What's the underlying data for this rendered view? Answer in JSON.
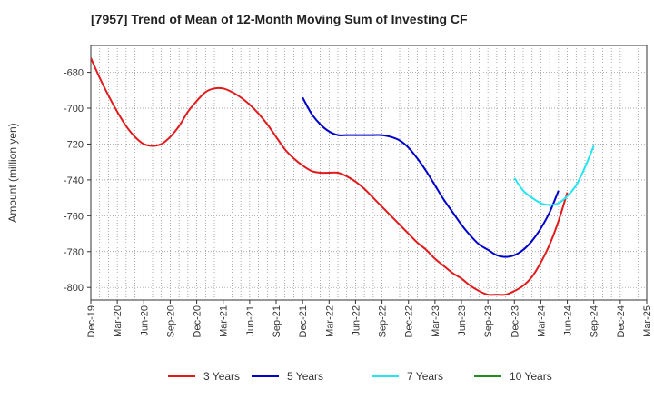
{
  "chart_data": {
    "type": "line",
    "title": "[7957]  Trend of Mean of 12-Month Moving Sum of Investing CF",
    "xlabel": "",
    "ylabel": "Amount (million yen)",
    "ylim": [
      -807,
      -665
    ],
    "yticks": [
      -680,
      -700,
      -720,
      -740,
      -760,
      -780,
      -800
    ],
    "xticks": [
      "Dec-19",
      "Mar-20",
      "Jun-20",
      "Sep-20",
      "Dec-20",
      "Mar-21",
      "Jun-21",
      "Sep-21",
      "Dec-21",
      "Mar-22",
      "Jun-22",
      "Sep-22",
      "Dec-22",
      "Mar-23",
      "Jun-23",
      "Sep-23",
      "Dec-23",
      "Mar-24",
      "Jun-24",
      "Sep-24",
      "Dec-24",
      "Mar-25"
    ],
    "grid": true,
    "legend_position": "bottom",
    "series": [
      {
        "name": "3 Years",
        "color": "#e31a1c",
        "start_index": 0,
        "values": [
          -672,
          -683,
          -693,
          -702,
          -710,
          -716,
          -720,
          -721,
          -720,
          -716,
          -710,
          -702,
          -696,
          -691,
          -689,
          -689,
          -691,
          -694,
          -698,
          -703,
          -709,
          -716,
          -723,
          -728,
          -732,
          -735,
          -736,
          -736,
          -736,
          -738,
          -741,
          -745,
          -750,
          -755,
          -760,
          -765,
          -770,
          -775,
          -779,
          -784,
          -788,
          -792,
          -795,
          -799,
          -802,
          -804,
          -804,
          -804,
          -802,
          -799,
          -794,
          -786,
          -776,
          -763,
          -747
        ]
      },
      {
        "name": "5 Years",
        "color": "#0000cc",
        "start_index": 24,
        "values": [
          -694,
          -703,
          -709,
          -713,
          -715,
          -715,
          -715,
          -715,
          -715,
          -715,
          -716,
          -718,
          -722,
          -728,
          -735,
          -743,
          -751,
          -758,
          -765,
          -771,
          -776,
          -779,
          -782,
          -783,
          -782,
          -779,
          -774,
          -767,
          -758,
          -746
        ]
      },
      {
        "name": "7 Years",
        "color": "#22e5f0",
        "start_index": 48,
        "values": [
          -739,
          -746,
          -750,
          -753,
          -754,
          -753,
          -749,
          -743,
          -733,
          -721
        ]
      },
      {
        "name": "10 Years",
        "color": "#228b22",
        "start_index": 0,
        "values": []
      }
    ]
  }
}
